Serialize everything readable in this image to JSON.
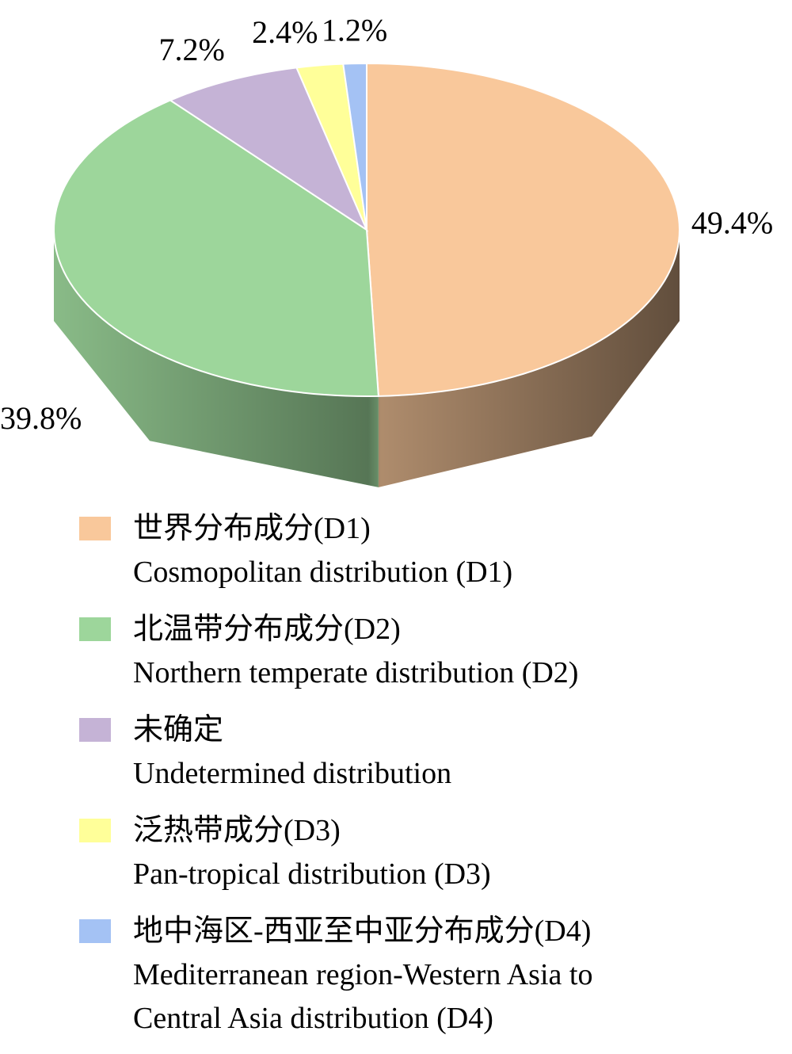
{
  "chart_data": {
    "type": "pie3d",
    "categories": [
      "世界分布成分(D1)",
      "北温带分布成分(D2)",
      "未确定",
      "泛热带成分(D3)",
      "地中海区-西亚至中亚分布成分(D4)"
    ],
    "categories_en": [
      "Cosmopolitan distribution (D1)",
      "Northern temperate distribution (D2)",
      "Undetermined distribution",
      "Pan-tropical distribution (D3)",
      "Mediterranean region-Western Asia to Central Asia distribution (D4)"
    ],
    "values": [
      49.4,
      39.8,
      7.2,
      2.4,
      1.2
    ],
    "value_labels": [
      "49.4%",
      "39.8%",
      "7.2%",
      "2.4%",
      "1.2%"
    ],
    "colors": [
      "#f9c89b",
      "#9dd69b",
      "#c5b3d6",
      "#ffff99",
      "#a4c2f4"
    ]
  }
}
